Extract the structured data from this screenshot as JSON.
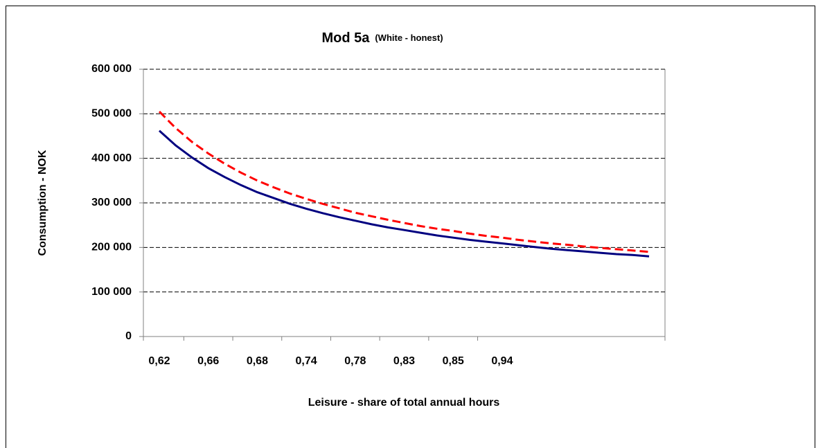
{
  "chart_data": {
    "type": "line",
    "title": "Mod 5a",
    "subtitle": "(White - honest)",
    "x_label": "Leisure - share of total annual hours",
    "y_label": "Consumption - NOK",
    "categories": [
      "0,62",
      null,
      null,
      "0,66",
      null,
      null,
      "0,68",
      null,
      null,
      "0,74",
      null,
      null,
      "0,78",
      null,
      null,
      "0,83",
      null,
      null,
      "0,85",
      null,
      null,
      "0,94",
      null,
      null,
      null,
      null,
      null,
      null,
      null,
      null,
      null
    ],
    "series": [
      {
        "name": "White",
        "color": "#000080",
        "dashed": false,
        "values": [
          462000,
          429000,
          402000,
          378000,
          358000,
          340000,
          324000,
          311000,
          298000,
          287000,
          277000,
          268000,
          260000,
          252000,
          245000,
          239000,
          233000,
          227000,
          222000,
          217000,
          213000,
          209000,
          205000,
          201000,
          197000,
          194000,
          191000,
          188000,
          185000,
          183000,
          180000
        ]
      },
      {
        "name": "Honest",
        "color": "#ff0000",
        "dashed": true,
        "values": [
          505000,
          468000,
          437000,
          411000,
          388000,
          368000,
          350000,
          335000,
          321000,
          309000,
          298000,
          288000,
          278000,
          270000,
          262000,
          255000,
          248000,
          242000,
          237000,
          231000,
          226000,
          222000,
          217000,
          213000,
          209000,
          206000,
          202000,
          199000,
          196000,
          193000,
          190000
        ]
      }
    ],
    "ylim": [
      0,
      600000
    ],
    "yticks": [
      0,
      {
        "value": 100000,
        "label": "100 000"
      },
      {
        "value": 200000,
        "label": "200 000"
      },
      {
        "value": 300000,
        "label": "300 000"
      },
      {
        "value": 400000,
        "label": "400 000"
      },
      {
        "value": 500000,
        "label": "500 000"
      },
      {
        "value": 600000,
        "label": "600 000"
      }
    ],
    "grid": true
  }
}
